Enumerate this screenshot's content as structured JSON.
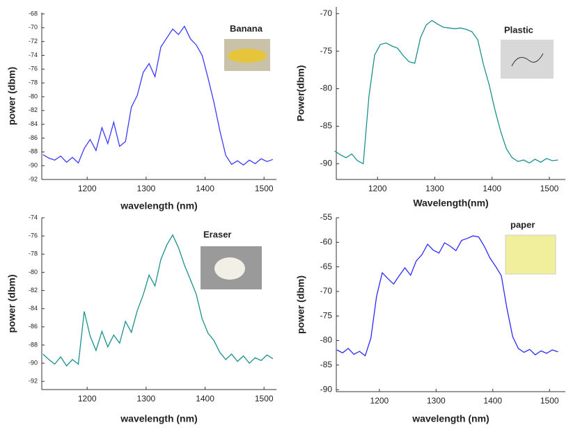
{
  "chart_data": [
    {
      "type": "line",
      "annotation": "Banana",
      "x_label": "wavelength (nm)",
      "y_label": "power (dbm)",
      "color": "#3a3aff",
      "xlim": [
        1123,
        1521
      ],
      "xticks": [
        1200,
        1300,
        1400,
        1500
      ],
      "ylim": [
        -92,
        -67.8
      ],
      "yticks": [
        -68,
        -70,
        -72,
        -74,
        -76,
        -78,
        -80,
        -82,
        -84,
        -86,
        -88,
        -90,
        -92
      ],
      "x": [
        1125,
        1135,
        1145,
        1155,
        1165,
        1175,
        1185,
        1195,
        1205,
        1215,
        1225,
        1235,
        1245,
        1255,
        1265,
        1275,
        1285,
        1295,
        1305,
        1315,
        1325,
        1335,
        1345,
        1355,
        1365,
        1375,
        1385,
        1395,
        1405,
        1415,
        1425,
        1435,
        1445,
        1455,
        1465,
        1475,
        1485,
        1495,
        1505,
        1515
      ],
      "values": [
        -88.4,
        -88.9,
        -89.2,
        -88.6,
        -89.5,
        -88.8,
        -89.6,
        -87.5,
        -86.2,
        -87.8,
        -84.5,
        -86.8,
        -83.7,
        -87.2,
        -86.5,
        -81.5,
        -79.8,
        -76.5,
        -75.2,
        -77.1,
        -72.8,
        -71.5,
        -70.2,
        -71.0,
        -69.8,
        -71.6,
        -72.5,
        -74.0,
        -77.3,
        -80.8,
        -84.9,
        -88.5,
        -89.8,
        -89.3,
        -89.9,
        -89.2,
        -89.7,
        -89.0,
        -89.4,
        -89.1
      ]
    },
    {
      "type": "line",
      "annotation": "Plastic",
      "x_label": "Wavelength(nm)",
      "y_label": "Power(dbm)",
      "color": "#1a9090",
      "xlim": [
        1128,
        1528
      ],
      "xticks": [
        1200,
        1300,
        1400,
        1500
      ],
      "ylim": [
        -92.1,
        -69.1
      ],
      "yticks": [
        -70,
        -75,
        -80,
        -85,
        -90
      ],
      "x": [
        1125,
        1135,
        1145,
        1155,
        1165,
        1175,
        1185,
        1195,
        1205,
        1215,
        1225,
        1235,
        1245,
        1255,
        1265,
        1275,
        1285,
        1295,
        1305,
        1315,
        1325,
        1335,
        1345,
        1355,
        1365,
        1375,
        1385,
        1395,
        1405,
        1415,
        1425,
        1435,
        1445,
        1455,
        1465,
        1475,
        1485,
        1495,
        1505,
        1515
      ],
      "values": [
        -88.3,
        -88.8,
        -89.2,
        -88.7,
        -89.6,
        -90.0,
        -81.0,
        -75.5,
        -74.1,
        -73.9,
        -74.3,
        -74.6,
        -75.6,
        -76.4,
        -76.6,
        -73.2,
        -71.5,
        -70.9,
        -71.4,
        -71.8,
        -71.9,
        -72.0,
        -71.9,
        -72.1,
        -72.4,
        -73.5,
        -76.8,
        -79.5,
        -82.8,
        -85.7,
        -88.0,
        -89.2,
        -89.7,
        -89.5,
        -89.9,
        -89.4,
        -89.8,
        -89.3,
        -89.6,
        -89.5
      ]
    },
    {
      "type": "line",
      "annotation": "Eraser",
      "x_label": "wavelength (nm)",
      "y_label": "power (dbm)",
      "color": "#1a9090",
      "xlim": [
        1123,
        1521
      ],
      "xticks": [
        1200,
        1300,
        1400,
        1500
      ],
      "ylim": [
        -92.9,
        -74
      ],
      "yticks": [
        -74,
        -76,
        -78,
        -80,
        -82,
        -84,
        -86,
        -88,
        -90,
        -92
      ],
      "x": [
        1125,
        1135,
        1145,
        1155,
        1165,
        1175,
        1185,
        1195,
        1205,
        1215,
        1225,
        1235,
        1245,
        1255,
        1265,
        1275,
        1285,
        1295,
        1305,
        1315,
        1325,
        1335,
        1345,
        1355,
        1365,
        1375,
        1385,
        1395,
        1405,
        1415,
        1425,
        1435,
        1445,
        1455,
        1465,
        1475,
        1485,
        1495,
        1505,
        1515
      ],
      "values": [
        -89.0,
        -89.6,
        -90.1,
        -89.3,
        -90.3,
        -89.6,
        -90.1,
        -84.3,
        -87.0,
        -88.6,
        -86.5,
        -88.2,
        -86.9,
        -87.8,
        -85.4,
        -86.6,
        -84.2,
        -82.5,
        -80.3,
        -81.5,
        -78.6,
        -77.0,
        -75.9,
        -77.3,
        -79.2,
        -80.8,
        -82.4,
        -85.1,
        -86.7,
        -87.5,
        -88.8,
        -89.6,
        -89.0,
        -89.8,
        -89.2,
        -90.0,
        -89.4,
        -89.7,
        -89.1,
        -89.5
      ]
    },
    {
      "type": "line",
      "annotation": "paper",
      "x_label": "wavelength (nm)",
      "y_label": "power (dbm)",
      "color": "#2a2aff",
      "xlim": [
        1124,
        1528
      ],
      "xticks": [
        1200,
        1300,
        1400,
        1500
      ],
      "ylim": [
        -90.4,
        -55
      ],
      "yticks": [
        -55,
        -60,
        -65,
        -70,
        -75,
        -80,
        -85,
        -90
      ],
      "x": [
        1125,
        1135,
        1145,
        1155,
        1165,
        1175,
        1185,
        1195,
        1205,
        1215,
        1225,
        1235,
        1245,
        1255,
        1265,
        1275,
        1285,
        1295,
        1305,
        1315,
        1325,
        1335,
        1345,
        1355,
        1365,
        1375,
        1385,
        1395,
        1405,
        1415,
        1425,
        1435,
        1445,
        1455,
        1465,
        1475,
        1485,
        1495,
        1505,
        1515
      ],
      "values": [
        -81.9,
        -82.5,
        -81.6,
        -82.8,
        -82.2,
        -83.1,
        -79.5,
        -71.0,
        -66.2,
        -67.4,
        -68.5,
        -66.8,
        -65.2,
        -66.7,
        -63.8,
        -62.5,
        -60.4,
        -61.6,
        -62.2,
        -60.1,
        -60.8,
        -61.7,
        -59.6,
        -59.2,
        -58.7,
        -58.9,
        -60.8,
        -63.2,
        -64.9,
        -66.8,
        -73.5,
        -79.2,
        -81.6,
        -82.4,
        -81.8,
        -82.9,
        -82.1,
        -82.6,
        -81.9,
        -82.3
      ]
    }
  ]
}
